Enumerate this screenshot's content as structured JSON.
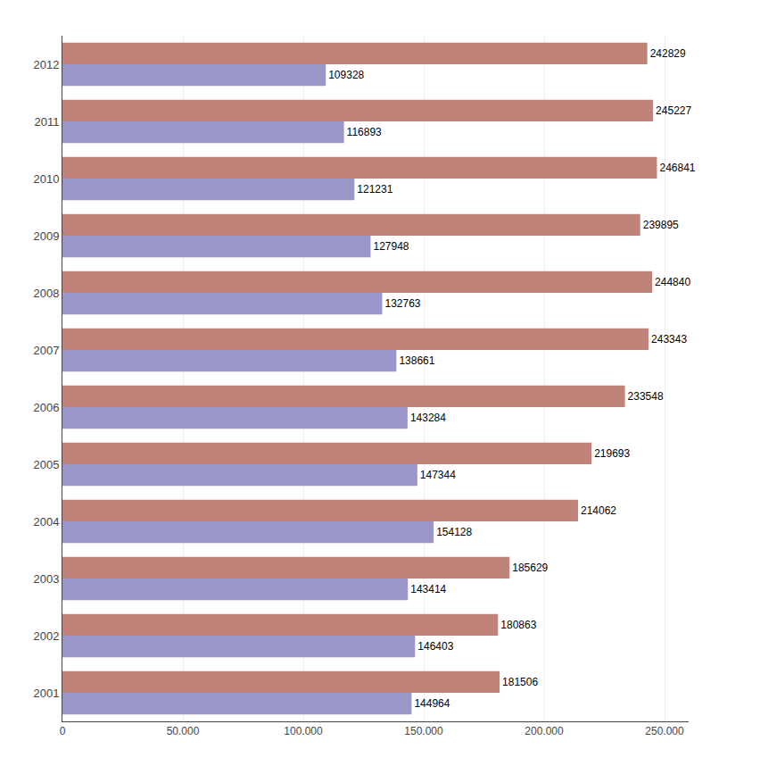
{
  "chart_data": {
    "type": "bar",
    "orientation": "horizontal",
    "categories": [
      "2012",
      "2011",
      "2010",
      "2009",
      "2008",
      "2007",
      "2006",
      "2005",
      "2004",
      "2003",
      "2002",
      "2001"
    ],
    "series": [
      {
        "color": "#C0837A",
        "values": [
          242829,
          245227,
          246841,
          239895,
          244840,
          243343,
          233548,
          219693,
          214062,
          185629,
          180863,
          181506
        ]
      },
      {
        "color": "#9B96C8",
        "values": [
          109328,
          116893,
          121231,
          127948,
          132763,
          138661,
          143284,
          147344,
          154128,
          143414,
          146403,
          144964
        ]
      }
    ],
    "xlim": [
      0,
      260000
    ],
    "xticks": [
      0,
      {
        "value": 50000,
        "label": "50.000"
      },
      {
        "value": 100000,
        "label": "100.000"
      },
      {
        "value": 150000,
        "label": "150.000"
      },
      {
        "value": 200000,
        "label": "200.000"
      },
      {
        "value": 250000,
        "label": "250.000"
      }
    ],
    "grid": true,
    "data_labels": true
  }
}
